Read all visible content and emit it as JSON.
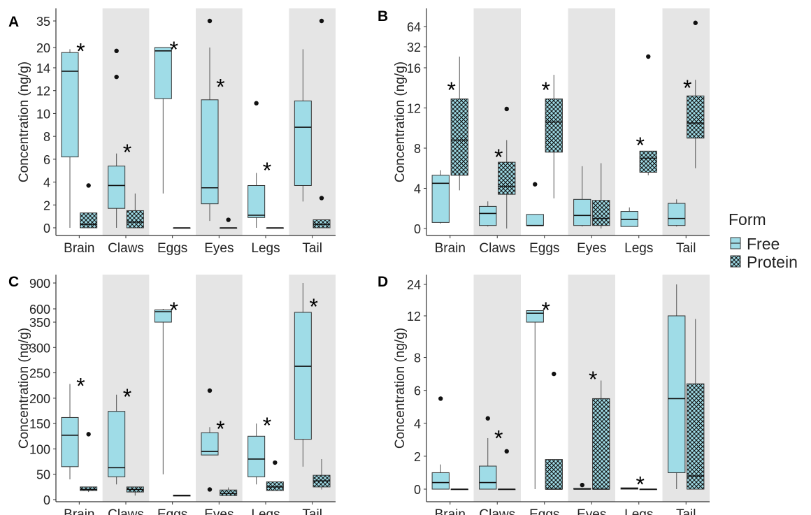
{
  "colors": {
    "free": "#9fdce7",
    "protein": "#9fdce7",
    "band": "#e5e5e5",
    "edge": "#333333"
  },
  "legend": {
    "title": "Form",
    "items": [
      {
        "label": "Free",
        "key": "free"
      },
      {
        "label": "Protein",
        "key": "protein"
      }
    ]
  },
  "chart_data": [
    {
      "type": "box",
      "panel": "A",
      "ylabel": "Concentration (ng/g)",
      "categories": [
        "Brain",
        "Claws",
        "Eggs",
        "Eyes",
        "Legs",
        "Tail"
      ],
      "y_ticks": [
        "0",
        "2",
        "4",
        "6",
        "8",
        "10",
        "12",
        "14",
        "20",
        "35"
      ],
      "scale_note": "axis broken above 15",
      "boxes": [
        {
          "cat": "Brain",
          "form": "Free",
          "min": 0,
          "q1": 6.2,
          "median": 13.7,
          "q3": 17,
          "max": 19,
          "outliers": []
        },
        {
          "cat": "Brain",
          "form": "Protein",
          "min": 0,
          "q1": 0,
          "median": 0.3,
          "q3": 1.3,
          "max": 1.3,
          "outliers": [
            3.7
          ]
        },
        {
          "cat": "Claws",
          "form": "Free",
          "min": 0,
          "q1": 1.7,
          "median": 3.7,
          "q3": 5.4,
          "max": 6.5,
          "outliers": [
            13.2,
            18
          ]
        },
        {
          "cat": "Claws",
          "form": "Protein",
          "min": 0,
          "q1": 0,
          "median": 0.5,
          "q3": 1.5,
          "max": 3,
          "outliers": []
        },
        {
          "cat": "Eggs",
          "form": "Free",
          "min": 3,
          "q1": 11.3,
          "median": 18,
          "q3": 20,
          "max": 20,
          "outliers": []
        },
        {
          "cat": "Eggs",
          "form": "Protein",
          "min": 0,
          "q1": 0,
          "median": 0,
          "q3": 0,
          "max": 0,
          "outliers": []
        },
        {
          "cat": "Eyes",
          "form": "Free",
          "min": 0.6,
          "q1": 2.1,
          "median": 3.5,
          "q3": 11.2,
          "max": 20,
          "outliers": [
            35
          ]
        },
        {
          "cat": "Eyes",
          "form": "Protein",
          "min": 0,
          "q1": 0,
          "median": 0,
          "q3": 0,
          "max": 0,
          "outliers": [
            0.7
          ]
        },
        {
          "cat": "Legs",
          "form": "Free",
          "min": 0,
          "q1": 0.9,
          "median": 1.1,
          "q3": 3.7,
          "max": 4.8,
          "outliers": [
            10.9
          ]
        },
        {
          "cat": "Legs",
          "form": "Protein",
          "min": 0,
          "q1": 0,
          "median": 0,
          "q3": 0,
          "max": 0,
          "outliers": []
        },
        {
          "cat": "Tail",
          "form": "Free",
          "min": 2.3,
          "q1": 3.7,
          "median": 8.8,
          "q3": 11.1,
          "max": 19,
          "outliers": []
        },
        {
          "cat": "Tail",
          "form": "Protein",
          "min": 0,
          "q1": 0,
          "median": 0.3,
          "q3": 0.7,
          "max": 0.7,
          "outliers": [
            2.6,
            35
          ]
        }
      ],
      "stars": [
        {
          "cat": "Brain",
          "y": 19
        },
        {
          "cat": "Claws",
          "y": 6.8
        },
        {
          "cat": "Eggs",
          "y": 20
        },
        {
          "cat": "Eyes",
          "y": 12.5
        },
        {
          "cat": "Legs",
          "y": 5.2
        }
      ]
    },
    {
      "type": "box",
      "panel": "B",
      "ylabel": "Concentration (ng/g)",
      "categories": [
        "Brain",
        "Claws",
        "Eggs",
        "Eyes",
        "Legs",
        "Tail"
      ],
      "y_ticks": [
        "0",
        "4",
        "8",
        "12",
        "16",
        "32",
        "64"
      ],
      "scale_note": "axis broken above 16",
      "boxes": [
        {
          "cat": "Brain",
          "form": "Free",
          "min": 0.5,
          "q1": 0.6,
          "median": 4.5,
          "q3": 5.3,
          "max": 5.8,
          "outliers": []
        },
        {
          "cat": "Brain",
          "form": "Protein",
          "min": 3.8,
          "q1": 5.3,
          "median": 8.8,
          "q3": 12.9,
          "max": 24,
          "outliers": []
        },
        {
          "cat": "Claws",
          "form": "Free",
          "min": 0.2,
          "q1": 0.3,
          "median": 1.5,
          "q3": 2.2,
          "max": 2.7,
          "outliers": []
        },
        {
          "cat": "Claws",
          "form": "Protein",
          "min": 0,
          "q1": 3.4,
          "median": 4.2,
          "q3": 6.6,
          "max": 8.8,
          "outliers": [
            11.9
          ]
        },
        {
          "cat": "Eggs",
          "form": "Free",
          "min": 0.3,
          "q1": 0.3,
          "median": 0.3,
          "q3": 1.4,
          "max": 1.4,
          "outliers": [
            4.4
          ]
        },
        {
          "cat": "Eggs",
          "form": "Protein",
          "min": 3,
          "q1": 7.6,
          "median": 10.6,
          "q3": 12.9,
          "max": 15.3,
          "outliers": []
        },
        {
          "cat": "Eyes",
          "form": "Free",
          "min": 0.2,
          "q1": 0.3,
          "median": 1.3,
          "q3": 2.9,
          "max": 6.2,
          "outliers": []
        },
        {
          "cat": "Eyes",
          "form": "Protein",
          "min": 0,
          "q1": 0.3,
          "median": 1,
          "q3": 2.8,
          "max": 6.5,
          "outliers": []
        },
        {
          "cat": "Legs",
          "form": "Free",
          "min": 0.2,
          "q1": 0.2,
          "median": 0.9,
          "q3": 1.7,
          "max": 2.1,
          "outliers": []
        },
        {
          "cat": "Legs",
          "form": "Protein",
          "min": 5.3,
          "q1": 5.6,
          "median": 7,
          "q3": 7.7,
          "max": 7.7,
          "outliers": [
            24
          ]
        },
        {
          "cat": "Tail",
          "form": "Free",
          "min": 0.2,
          "q1": 0.3,
          "median": 1,
          "q3": 2.5,
          "max": 2.9,
          "outliers": []
        },
        {
          "cat": "Tail",
          "form": "Protein",
          "min": 6,
          "q1": 9,
          "median": 10.5,
          "q3": 13.2,
          "max": 14.8,
          "outliers": [
            70
          ]
        }
      ],
      "stars": [
        {
          "cat": "Brain",
          "y": 14
        },
        {
          "cat": "Claws",
          "y": 7.3
        },
        {
          "cat": "Eggs",
          "y": 14
        },
        {
          "cat": "Legs",
          "y": 8.5
        },
        {
          "cat": "Tail",
          "y": 14.2
        }
      ]
    },
    {
      "type": "box",
      "panel": "C",
      "ylabel": "Concentration (ng/g)",
      "categories": [
        "Brain",
        "Claws",
        "Eggs",
        "Eyes",
        "Legs",
        "Tail"
      ],
      "y_ticks": [
        "0",
        "50",
        "100",
        "150",
        "200",
        "250",
        "300",
        "350",
        "600",
        "900"
      ],
      "scale_note": "axis broken above 350",
      "boxes": [
        {
          "cat": "Brain",
          "form": "Free",
          "min": 40,
          "q1": 65,
          "median": 127,
          "q3": 162,
          "max": 228,
          "outliers": []
        },
        {
          "cat": "Brain",
          "form": "Protein",
          "min": 15,
          "q1": 18,
          "median": 20,
          "q3": 25,
          "max": 25,
          "outliers": [
            129
          ]
        },
        {
          "cat": "Claws",
          "form": "Free",
          "min": 30,
          "q1": 45,
          "median": 63,
          "q3": 174,
          "max": 207,
          "outliers": []
        },
        {
          "cat": "Claws",
          "form": "Protein",
          "min": 8,
          "q1": 15,
          "median": 20,
          "q3": 25,
          "max": 25,
          "outliers": []
        },
        {
          "cat": "Eggs",
          "form": "Free",
          "min": 50,
          "q1": 350,
          "median": 520,
          "q3": 570,
          "max": 600,
          "outliers": []
        },
        {
          "cat": "Eggs",
          "form": "Protein",
          "min": 7,
          "q1": 7,
          "median": 8,
          "q3": 9,
          "max": 9,
          "outliers": []
        },
        {
          "cat": "Eyes",
          "form": "Free",
          "min": 88,
          "q1": 88,
          "median": 95,
          "q3": 132,
          "max": 143,
          "outliers": [
            20,
            215
          ]
        },
        {
          "cat": "Eyes",
          "form": "Protein",
          "min": 8,
          "q1": 8,
          "median": 12,
          "q3": 19,
          "max": 24,
          "outliers": []
        },
        {
          "cat": "Legs",
          "form": "Free",
          "min": 30,
          "q1": 45,
          "median": 80,
          "q3": 125,
          "max": 150,
          "outliers": []
        },
        {
          "cat": "Legs",
          "form": "Protein",
          "min": 18,
          "q1": 18,
          "median": 25,
          "q3": 35,
          "max": 35,
          "outliers": [
            73
          ]
        },
        {
          "cat": "Tail",
          "form": "Free",
          "min": 65,
          "q1": 119,
          "median": 263,
          "q3": 500,
          "max": 900,
          "outliers": []
        },
        {
          "cat": "Tail",
          "form": "Protein",
          "min": 20,
          "q1": 25,
          "median": 37,
          "q3": 48,
          "max": 80,
          "outliers": []
        }
      ],
      "stars": [
        {
          "cat": "Brain",
          "y": 228
        },
        {
          "cat": "Claws",
          "y": 207
        },
        {
          "cat": "Eggs",
          "y": 610
        },
        {
          "cat": "Eyes",
          "y": 143
        },
        {
          "cat": "Legs",
          "y": 150
        },
        {
          "cat": "Tail",
          "y": 650
        }
      ]
    },
    {
      "type": "box",
      "panel": "D",
      "ylabel": "Concentration (ng/g)",
      "categories": [
        "Brain",
        "Claws",
        "Eggs",
        "Eyes",
        "Legs",
        "Tail"
      ],
      "y_ticks": [
        "0",
        "2",
        "4",
        "6",
        "8",
        "12",
        "24"
      ],
      "scale_note": "axis broken above 9",
      "boxes": [
        {
          "cat": "Brain",
          "form": "Free",
          "min": 0,
          "q1": 0,
          "median": 0.4,
          "q3": 1,
          "max": 1.5,
          "outliers": [
            5.5
          ]
        },
        {
          "cat": "Brain",
          "form": "Protein",
          "min": 0,
          "q1": 0,
          "median": 0,
          "q3": 0,
          "max": 0,
          "outliers": []
        },
        {
          "cat": "Claws",
          "form": "Free",
          "min": 0,
          "q1": 0,
          "median": 0.4,
          "q3": 1.4,
          "max": 3.1,
          "outliers": [
            4.3
          ]
        },
        {
          "cat": "Claws",
          "form": "Protein",
          "min": 0,
          "q1": 0,
          "median": 0,
          "q3": 0,
          "max": 0,
          "outliers": [
            2.3
          ]
        },
        {
          "cat": "Eggs",
          "form": "Free",
          "min": 0,
          "q1": 11,
          "median": 13,
          "q3": 14,
          "max": 14,
          "outliers": []
        },
        {
          "cat": "Eggs",
          "form": "Protein",
          "min": 0,
          "q1": 0,
          "median": 0,
          "q3": 1.8,
          "max": 1.8,
          "outliers": [
            7
          ]
        },
        {
          "cat": "Eyes",
          "form": "Free",
          "min": 0,
          "q1": 0,
          "median": 0,
          "q3": 0.05,
          "max": 0.05,
          "outliers": [
            0.25
          ]
        },
        {
          "cat": "Eyes",
          "form": "Protein",
          "min": 0,
          "q1": 0,
          "median": 0,
          "q3": 5.5,
          "max": 6.6,
          "outliers": []
        },
        {
          "cat": "Legs",
          "form": "Free",
          "min": 0,
          "q1": 0,
          "median": 0.05,
          "q3": 0.08,
          "max": 0.08,
          "outliers": []
        },
        {
          "cat": "Legs",
          "form": "Protein",
          "min": 0,
          "q1": 0,
          "median": 0,
          "q3": 0,
          "max": 0,
          "outliers": []
        },
        {
          "cat": "Tail",
          "form": "Free",
          "min": 0,
          "q1": 1,
          "median": 5.5,
          "q3": 12,
          "max": 24,
          "outliers": []
        },
        {
          "cat": "Tail",
          "form": "Protein",
          "min": 0,
          "q1": 0,
          "median": 0.8,
          "q3": 6.4,
          "max": 11.5,
          "outliers": []
        }
      ],
      "stars": [
        {
          "cat": "Claws",
          "y": 3.2
        },
        {
          "cat": "Eggs",
          "y": 15
        },
        {
          "cat": "Eyes",
          "y": 6.8
        },
        {
          "cat": "Legs",
          "y": 0.4
        }
      ]
    }
  ]
}
